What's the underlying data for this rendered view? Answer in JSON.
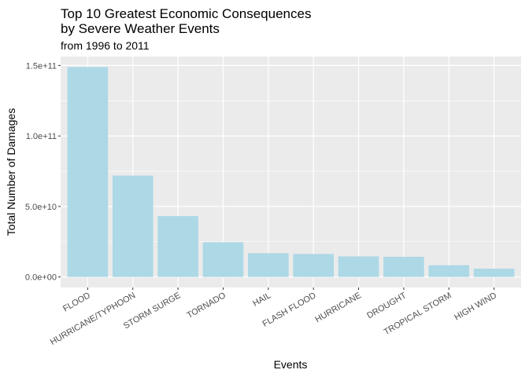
{
  "chart_data": {
    "type": "bar",
    "title_lines": [
      "Top 10 Greatest Economic Consequences",
      "by Severe Weather Events"
    ],
    "subtitle": "from 1996 to 2011",
    "xlabel": "Events",
    "ylabel": "Total Number of Damages",
    "categories": [
      "FLOOD",
      "HURRICANE/TYPHOON",
      "STORM SURGE",
      "TORNADO",
      "HAIL",
      "FLASH FLOOD",
      "HURRICANE",
      "DROUGHT",
      "TROPICAL STORM",
      "HIGH WIND"
    ],
    "values": [
      148900000000,
      71900000000,
      43200000000,
      24600000000,
      16900000000,
      16300000000,
      14600000000,
      14300000000,
      8300000000,
      5900000000
    ],
    "ylim": [
      0,
      155000000000
    ],
    "yticks": [
      0,
      50000000000,
      100000000000,
      150000000000
    ],
    "ytick_labels": [
      "0.0e+00",
      "5.0e+10",
      "1.0e+11",
      "1.5e+11"
    ],
    "bar_color": "#add8e6",
    "panel_color": "#ebebeb",
    "grid_color": "#ffffff",
    "grid": true,
    "legend": "none"
  }
}
